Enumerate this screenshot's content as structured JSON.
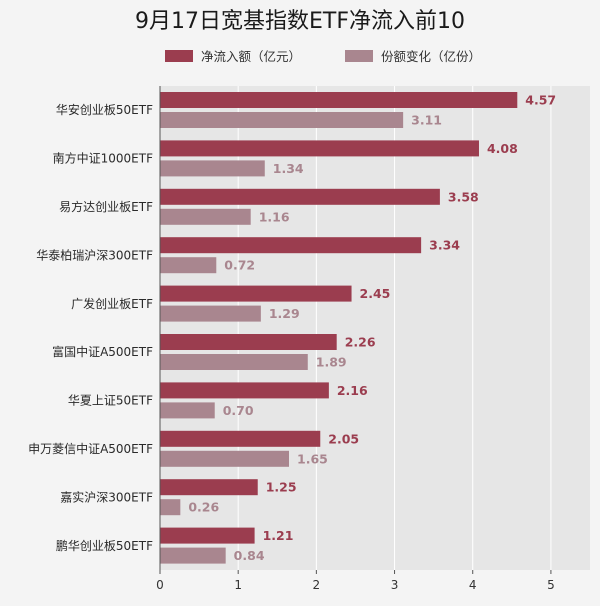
{
  "chart_data": {
    "type": "bar",
    "orientation": "horizontal",
    "title": "9月17日宽基指数ETF净流入前10",
    "categories": [
      "华安创业板50ETF",
      "南方中证1000ETF",
      "易方达创业板ETF",
      "华泰柏瑞沪深300ETF",
      "广发创业板ETF",
      "富国中证A500ETF",
      "华夏上证50ETF",
      "申万菱信中证A500ETF",
      "嘉实沪深300ETF",
      "鹏华创业板50ETF"
    ],
    "series": [
      {
        "name": "净流入额（亿元）",
        "color": "#9b3d4f",
        "values": [
          4.57,
          4.08,
          3.58,
          3.34,
          2.45,
          2.26,
          2.16,
          2.05,
          1.25,
          1.21
        ],
        "labels": [
          "4.57",
          "4.08",
          "3.58",
          "3.34",
          "2.45",
          "2.26",
          "2.16",
          "2.05",
          "1.25",
          "1.21"
        ]
      },
      {
        "name": "份额变化（亿份）",
        "color": "#a9868f",
        "values": [
          3.11,
          1.34,
          1.16,
          0.72,
          1.29,
          1.89,
          0.7,
          1.65,
          0.26,
          0.84
        ],
        "labels": [
          "3.11",
          "1.34",
          "1.16",
          "0.72",
          "1.29",
          "1.89",
          "0.70",
          "1.65",
          "0.26",
          "0.84"
        ]
      }
    ],
    "xlim": [
      0,
      5.5
    ],
    "xticks": [
      "0",
      "1",
      "2",
      "3",
      "4",
      "5"
    ],
    "grid": true,
    "legend_position": "top"
  }
}
